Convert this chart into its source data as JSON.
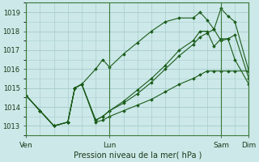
{
  "xlabel": "Pression niveau de la mer( hPa )",
  "bg_color": "#cce8e8",
  "grid_color": "#aacece",
  "line_color": "#1a5c1a",
  "dark_line_color": "#2a7a2a",
  "ylim": [
    1012.5,
    1019.5
  ],
  "xlim": [
    0,
    192
  ],
  "yticks": [
    1013,
    1014,
    1015,
    1016,
    1017,
    1018,
    1019
  ],
  "day_labels": [
    "Ven",
    "Lun",
    "Sam",
    "Dim"
  ],
  "day_positions": [
    0,
    72,
    168,
    192
  ],
  "series": [
    {
      "x": [
        0,
        12,
        24,
        36,
        42,
        48,
        60,
        66,
        72,
        84,
        96,
        108,
        120,
        132,
        144,
        150,
        156,
        162,
        168,
        174,
        180,
        192
      ],
      "y": [
        1014.6,
        1013.8,
        1013.0,
        1013.2,
        1015.0,
        1015.2,
        1016.0,
        1016.5,
        1016.1,
        1016.8,
        1017.4,
        1018.0,
        1018.5,
        1018.7,
        1018.7,
        1019.0,
        1018.6,
        1018.1,
        1019.2,
        1018.8,
        1018.5,
        1015.9
      ]
    },
    {
      "x": [
        0,
        12,
        24,
        36,
        42,
        48,
        60,
        66,
        72,
        84,
        96,
        108,
        120,
        132,
        144,
        150,
        156,
        162,
        168,
        174,
        180,
        192
      ],
      "y": [
        1014.6,
        1013.8,
        1013.0,
        1013.2,
        1015.0,
        1015.2,
        1013.2,
        1013.3,
        1013.5,
        1013.8,
        1014.1,
        1014.4,
        1014.8,
        1015.2,
        1015.5,
        1015.7,
        1015.9,
        1015.9,
        1015.9,
        1015.9,
        1015.9,
        1015.9
      ]
    },
    {
      "x": [
        0,
        12,
        24,
        36,
        42,
        48,
        60,
        66,
        72,
        84,
        96,
        108,
        120,
        132,
        144,
        150,
        156,
        162,
        168,
        174,
        180,
        192
      ],
      "y": [
        1014.6,
        1013.8,
        1013.0,
        1013.2,
        1015.0,
        1015.2,
        1013.3,
        1013.5,
        1013.8,
        1014.2,
        1014.7,
        1015.3,
        1016.0,
        1016.7,
        1017.3,
        1017.7,
        1017.9,
        1018.1,
        1017.5,
        1017.6,
        1016.5,
        1015.2
      ]
    },
    {
      "x": [
        0,
        12,
        24,
        36,
        42,
        48,
        60,
        66,
        72,
        84,
        96,
        108,
        120,
        132,
        144,
        150,
        156,
        162,
        168,
        174,
        180,
        192
      ],
      "y": [
        1014.6,
        1013.8,
        1013.0,
        1013.2,
        1015.0,
        1015.2,
        1013.3,
        1013.5,
        1013.8,
        1014.3,
        1014.9,
        1015.5,
        1016.2,
        1017.0,
        1017.5,
        1018.0,
        1018.0,
        1017.2,
        1017.6,
        1017.6,
        1017.8,
        1015.5
      ]
    }
  ]
}
